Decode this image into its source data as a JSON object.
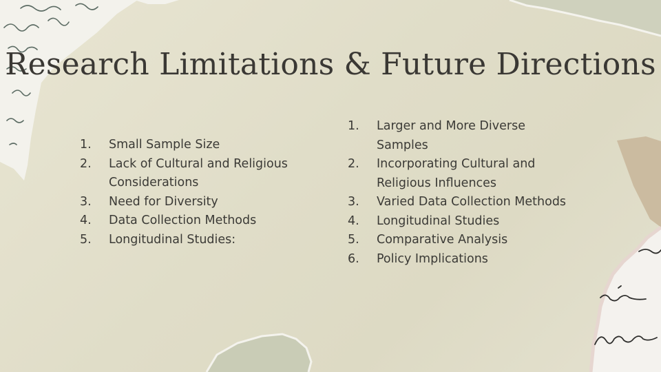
{
  "slide": {
    "title": "Research Limitations & Future Directions",
    "limitations": [
      {
        "num": "1.",
        "text": "Small Sample Size"
      },
      {
        "num": "2.",
        "text": "Lack of Cultural and Religious Considerations"
      },
      {
        "num": "3.",
        "text": "Need for Diversity"
      },
      {
        "num": "4.",
        "text": "Data Collection Methods"
      },
      {
        "num": "5.",
        "text": "Longitudinal Studies:"
      }
    ],
    "future_directions": [
      {
        "num": "1.",
        "text": "Larger and More Diverse Samples"
      },
      {
        "num": "2.",
        "text": "Incorporating Cultural and Religious Influences"
      },
      {
        "num": "3.",
        "text": "Varied Data Collection Methods"
      },
      {
        "num": "4.",
        "text": "Longitudinal Studies"
      },
      {
        "num": "5.",
        "text": "Comparative Analysis"
      },
      {
        "num": "6.",
        "text": "Policy Implications"
      }
    ]
  },
  "colors": {
    "paper": "#e3e0ce",
    "sage": "#c9ccb6",
    "text": "#3b3a36",
    "tape": "#c9b79b"
  }
}
